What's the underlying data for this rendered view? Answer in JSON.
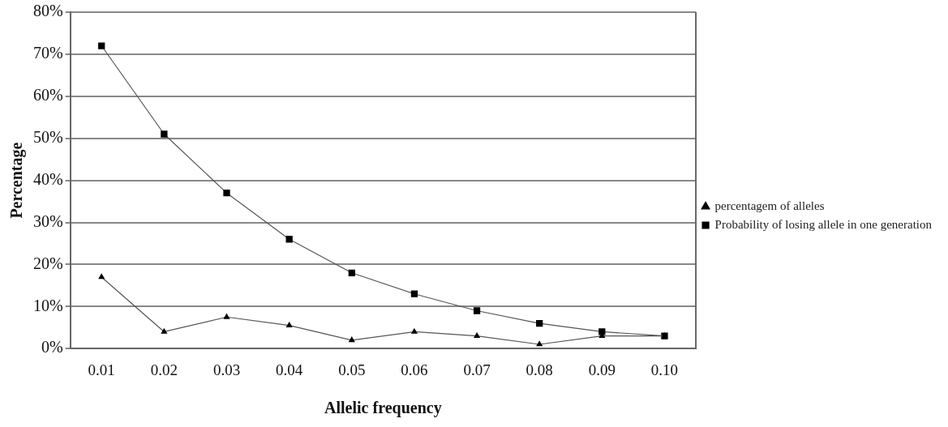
{
  "chart_data": {
    "type": "line",
    "xlabel": "Allelic frequency",
    "ylabel": "Percentage",
    "categories": [
      "0.01",
      "0.02",
      "0.03",
      "0.04",
      "0.05",
      "0.06",
      "0.07",
      "0.08",
      "0.09",
      "0.10"
    ],
    "series": [
      {
        "name": "percentagem of alleles",
        "color": "#000000",
        "marker": "triangle",
        "values": [
          17,
          4,
          7.5,
          5.5,
          2,
          4,
          3,
          1,
          3,
          3
        ]
      },
      {
        "name": "Probability of losing allele in one generation",
        "color": "#000000",
        "marker": "square",
        "values": [
          72,
          51,
          37,
          26,
          18,
          13,
          9,
          6,
          4,
          3
        ]
      }
    ],
    "ylim": [
      0,
      80
    ],
    "yticks": [
      {
        "value": 0,
        "label": "0%"
      },
      {
        "value": 10,
        "label": "10%"
      },
      {
        "value": 20,
        "label": "20%"
      },
      {
        "value": 30,
        "label": "30%"
      },
      {
        "value": 40,
        "label": "40%"
      },
      {
        "value": 50,
        "label": "50%"
      },
      {
        "value": 60,
        "label": "60%"
      },
      {
        "value": 70,
        "label": "70%"
      },
      {
        "value": 80,
        "label": "80%"
      }
    ],
    "grid": "y",
    "legend": "right",
    "line_style": "solid"
  }
}
